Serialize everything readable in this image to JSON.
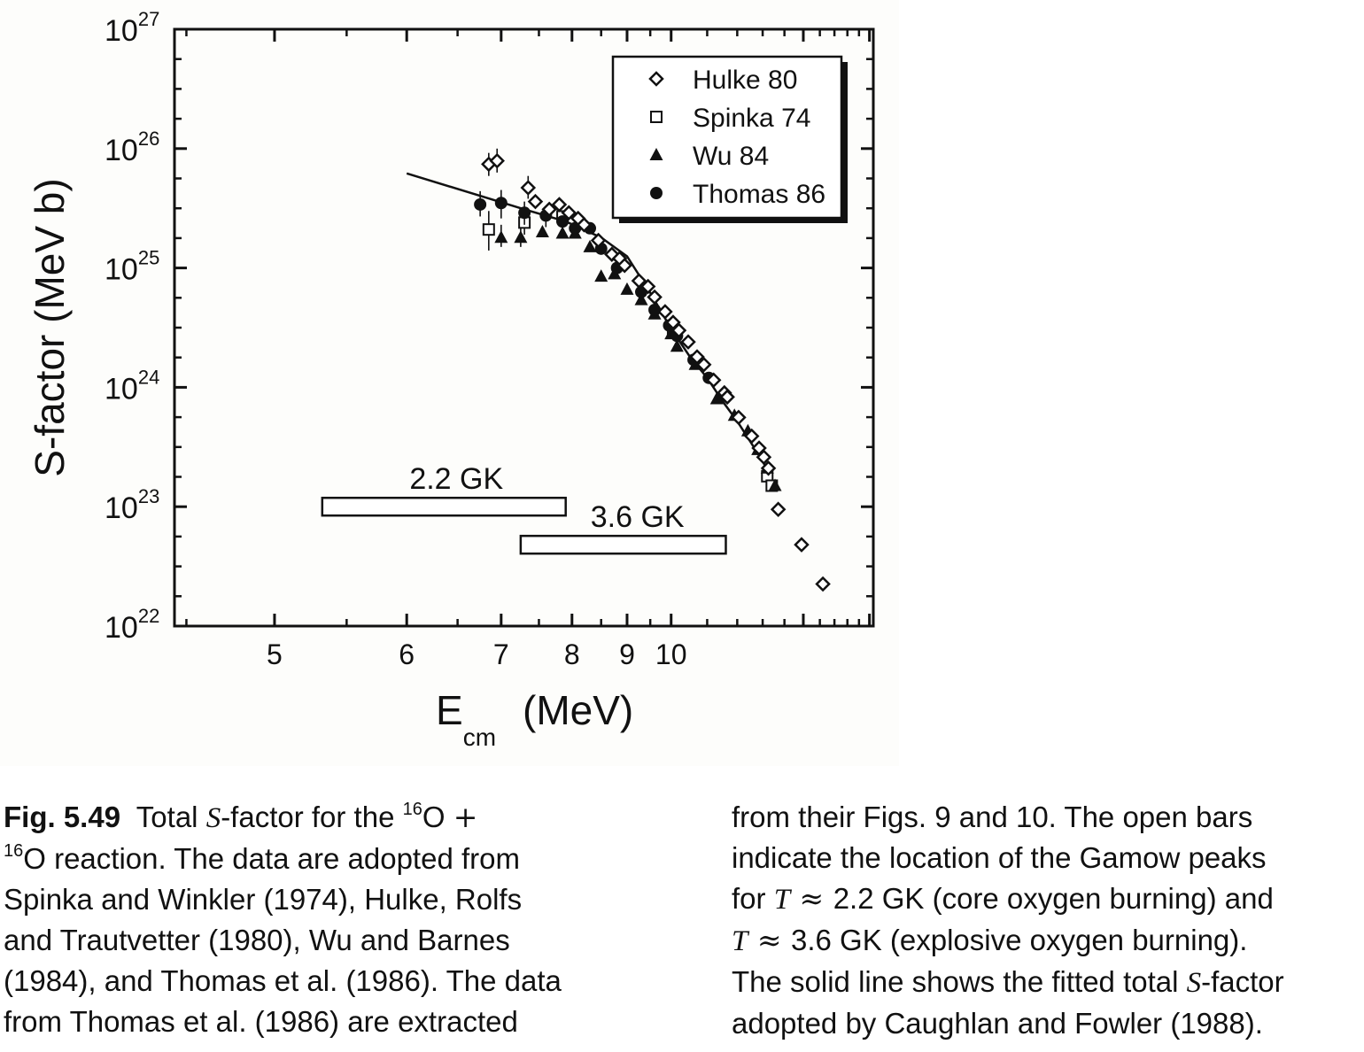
{
  "chart_data": {
    "type": "scatter",
    "xlabel": "E",
    "xlabel_sub": "cm",
    "xlabel_unit": "(MeV)",
    "ylabel": "S-factor  (MeV b)",
    "x_scale": "reciprocal",
    "y_scale": "log",
    "xlim": [
      4.44,
      20.4
    ],
    "ylim": [
      1e+22,
      1e+27
    ],
    "x_ticks": [
      5,
      6,
      7,
      8,
      9,
      10
    ],
    "x_tick_labels": [
      "5",
      "6",
      "7",
      "8",
      "9",
      "10"
    ],
    "y_ticks": [
      1e+22,
      1e+23,
      1e+24,
      1e+25,
      1e+26,
      1e+27
    ],
    "y_tick_base": "10",
    "y_tick_exponents": [
      "22",
      "23",
      "24",
      "25",
      "26",
      "27"
    ],
    "legend_position": "top-right",
    "series": [
      {
        "name": "Hulke 80",
        "marker": "open-diamond",
        "points": [
          [
            6.85,
            7.4e+25
          ],
          [
            6.95,
            7.9e+25
          ],
          [
            7.35,
            4.7e+25
          ],
          [
            7.45,
            3.6e+25
          ],
          [
            7.65,
            3.1e+25
          ],
          [
            7.8,
            3.4e+25
          ],
          [
            7.95,
            2.9e+25
          ],
          [
            8.1,
            2.6e+25
          ],
          [
            8.2,
            2.3e+25
          ],
          [
            8.45,
            1.7e+25
          ],
          [
            8.7,
            1.3e+25
          ],
          [
            8.85,
            1.2e+25
          ],
          [
            8.95,
            1.05e+25
          ],
          [
            9.25,
            7.8e+24
          ],
          [
            9.45,
            7e+24
          ],
          [
            9.6,
            5.7e+24
          ],
          [
            9.85,
            4.3e+24
          ],
          [
            10.05,
            3.5e+24
          ],
          [
            10.2,
            3e+24
          ],
          [
            10.45,
            2.4e+24
          ],
          [
            10.7,
            1.8e+24
          ],
          [
            10.9,
            1.55e+24
          ],
          [
            11.2,
            1.15e+24
          ],
          [
            11.55,
            9e+23
          ],
          [
            11.65,
            8.3e+23
          ],
          [
            12.05,
            5.6e+23
          ],
          [
            12.55,
            3.9e+23
          ],
          [
            12.85,
            3.1e+23
          ],
          [
            13.05,
            2.6e+23
          ],
          [
            13.25,
            2.1e+23
          ],
          [
            13.7,
            9.5e+22
          ],
          [
            14.9,
            4.8e+22
          ],
          [
            16.2,
            2.25e+22
          ]
        ],
        "error_bars": [
          [
            6.85,
            5.9e+25,
            9.2e+25
          ],
          [
            6.95,
            6.3e+25,
            1e+26
          ],
          [
            7.35,
            3.8e+25,
            5.9e+25
          ]
        ]
      },
      {
        "name": "Spinka 74",
        "marker": "open-square",
        "points": [
          [
            6.85,
            2.1e+25
          ],
          [
            7.3,
            2.4e+25
          ],
          [
            7.85,
            2.7e+25
          ],
          [
            10.05,
            3.1e+24
          ],
          [
            13.2,
            1.8e+23
          ],
          [
            13.4,
            1.5e+23
          ]
        ],
        "error_bars": [
          [
            6.85,
            1.4e+25,
            3e+25
          ],
          [
            7.3,
            1.9e+25,
            3e+25
          ]
        ]
      },
      {
        "name": "Wu 84",
        "marker": "filled-triangle",
        "points": [
          [
            7.0,
            1.8e+25
          ],
          [
            7.25,
            1.8e+25
          ],
          [
            7.55,
            2e+25
          ],
          [
            7.85,
            1.95e+25
          ],
          [
            8.05,
            1.95e+25
          ],
          [
            8.3,
            1.5e+25
          ],
          [
            8.5,
            8.5e+24
          ],
          [
            8.75,
            8.9e+24
          ],
          [
            9.0,
            6.6e+24
          ],
          [
            9.3,
            5.4e+24
          ],
          [
            9.6,
            4.1e+24
          ],
          [
            10.0,
            2.8e+24
          ],
          [
            10.15,
            2.2e+24
          ],
          [
            10.65,
            1.55e+24
          ],
          [
            11.3,
            8e+23
          ],
          [
            11.9,
            5.8e+23
          ],
          [
            12.4,
            4.3e+23
          ],
          [
            12.8,
            3e+23
          ],
          [
            13.2,
            2.1e+23
          ],
          [
            13.55,
            1.5e+23
          ]
        ],
        "error_bars": [
          [
            7.0,
            1.5e+25,
            2.3e+25
          ],
          [
            7.25,
            1.5e+25,
            2.2e+25
          ]
        ]
      },
      {
        "name": "Thomas 86",
        "marker": "filled-circle",
        "points": [
          [
            6.75,
            3.4e+25
          ],
          [
            7.0,
            3.5e+25
          ],
          [
            7.3,
            2.9e+25
          ],
          [
            7.6,
            2.75e+25
          ],
          [
            7.85,
            2.45e+25
          ],
          [
            8.05,
            2.15e+25
          ],
          [
            8.3,
            2.15e+25
          ],
          [
            8.5,
            1.45e+25
          ],
          [
            8.8,
            1e+25
          ],
          [
            9.3,
            6.3e+24
          ],
          [
            9.6,
            4.45e+24
          ],
          [
            9.95,
            3.3e+24
          ],
          [
            10.15,
            2.7e+24
          ],
          [
            10.6,
            1.7e+24
          ],
          [
            11.05,
            1.2e+24
          ]
        ],
        "error_bars": [
          [
            6.75,
            2.7e+25,
            4.4e+25
          ],
          [
            7.0,
            2.6e+25,
            4.5e+25
          ],
          [
            7.3,
            2.3e+25,
            3.6e+25
          ],
          [
            7.6,
            2.2e+25,
            3.3e+25
          ]
        ]
      }
    ],
    "fit_line": {
      "points": [
        [
          6.0,
          6.2e+25
        ],
        [
          7.3,
          3.1e+25
        ],
        [
          7.9,
          2.45e+25
        ],
        [
          8.5,
          1.8e+25
        ],
        [
          9.0,
          1.25e+25
        ],
        [
          9.5,
          6.2e+24
        ],
        [
          10.0,
          3.1e+24
        ],
        [
          10.5,
          1.8e+24
        ],
        [
          11.0,
          1.2e+24
        ],
        [
          11.5,
          7.6e+23
        ],
        [
          12.0,
          5.2e+23
        ],
        [
          12.5,
          3.5e+23
        ],
        [
          13.0,
          2.4e+23
        ],
        [
          13.6,
          1.45e+23
        ]
      ]
    },
    "gamow_bars": [
      {
        "label": "2.2 GK",
        "x_range": [
          5.32,
          7.9
        ],
        "y": 1e+23
      },
      {
        "label": "3.6 GK",
        "x_range": [
          7.25,
          11.6
        ],
        "y": 4.8e+22
      }
    ]
  },
  "caption": {
    "left": [
      [
        [
          "b",
          "Fig. 5.49"
        ],
        [
          "t",
          "  Total "
        ],
        [
          "m",
          "S"
        ],
        [
          "t",
          "-factor for the "
        ],
        [
          "sup",
          "16"
        ],
        [
          "t",
          "O "
        ],
        [
          "s",
          "+"
        ]
      ],
      [
        [
          "sup",
          "16"
        ],
        [
          "t",
          "O reaction. The data are adopted from"
        ]
      ],
      [
        [
          "t",
          "Spinka and Winkler (1974), Hulke, Rolfs"
        ]
      ],
      [
        [
          "t",
          "and Trautvetter (1980), Wu and Barnes"
        ]
      ],
      [
        [
          "t",
          "(1984), and Thomas et al. (1986). The data"
        ]
      ],
      [
        [
          "t",
          "from Thomas et al. (1986) are extracted"
        ]
      ]
    ],
    "right": [
      [
        [
          "t",
          "from their Figs. 9 and 10. The open bars"
        ]
      ],
      [
        [
          "t",
          "indicate the location of the Gamow peaks"
        ]
      ],
      [
        [
          "t",
          "for "
        ],
        [
          "m",
          "T"
        ],
        [
          "s",
          " ≈ "
        ],
        [
          "t",
          "2.2 GK (core oxygen burning) and"
        ]
      ],
      [
        [
          "m",
          "T"
        ],
        [
          "s",
          " ≈ "
        ],
        [
          "t",
          "3.6 GK (explosive oxygen burning)."
        ]
      ],
      [
        [
          "t",
          "The solid line shows the fitted total "
        ],
        [
          "m",
          "S"
        ],
        [
          "t",
          "-factor"
        ]
      ],
      [
        [
          "t",
          "adopted by Caughlan and Fowler (1988)."
        ]
      ]
    ]
  }
}
